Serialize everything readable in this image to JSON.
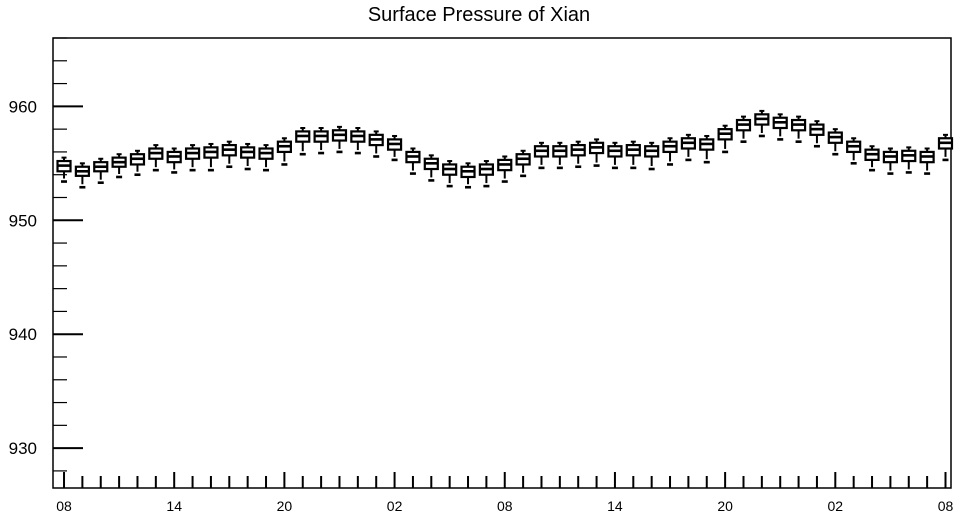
{
  "chart_data": {
    "type": "boxplot",
    "title": "Surface Pressure of Xian",
    "xlabel": "",
    "ylabel": "",
    "ylim": [
      926.5,
      966
    ],
    "y_ticks": [
      930,
      940,
      950,
      960
    ],
    "x_range": [
      -0.6,
      48.3
    ],
    "x_ticks": [
      {
        "pos": 0,
        "label": "08"
      },
      {
        "pos": 6,
        "label": "14"
      },
      {
        "pos": 12,
        "label": "20"
      },
      {
        "pos": 18,
        "label": "02"
      },
      {
        "pos": 24,
        "label": "08"
      },
      {
        "pos": 30,
        "label": "14"
      },
      {
        "pos": 36,
        "label": "20"
      },
      {
        "pos": 42,
        "label": "02"
      },
      {
        "pos": 48,
        "label": "08"
      }
    ],
    "minor_x_step": 1,
    "grid": false,
    "series": [
      {
        "x": [
          0,
          1,
          2,
          3,
          4,
          5,
          6,
          7,
          8,
          9,
          10,
          11,
          12,
          13,
          14,
          15,
          16,
          17,
          18,
          19,
          20,
          21,
          22,
          23,
          24,
          25,
          26,
          27,
          28,
          29,
          30,
          31,
          32,
          33,
          34,
          35,
          36,
          37,
          38,
          39,
          40,
          41,
          42,
          43,
          44,
          45,
          46,
          47,
          48
        ],
        "median": [
          954.8,
          954.3,
          954.7,
          955.1,
          955.4,
          955.9,
          955.6,
          955.9,
          956.0,
          956.2,
          956.0,
          955.9,
          956.5,
          957.4,
          957.4,
          957.5,
          957.4,
          957.1,
          956.7,
          955.6,
          955.0,
          954.5,
          954.3,
          954.5,
          954.9,
          955.4,
          956.1,
          956.1,
          956.2,
          956.4,
          956.1,
          956.2,
          956.1,
          956.5,
          956.8,
          956.7,
          957.6,
          958.4,
          958.9,
          958.6,
          958.4,
          958.0,
          957.3,
          956.5,
          955.8,
          955.6,
          955.7,
          955.6,
          956.8
        ],
        "q1": [
          954.3,
          953.9,
          954.3,
          954.7,
          954.9,
          955.4,
          955.1,
          955.4,
          955.5,
          955.7,
          955.5,
          955.4,
          956.0,
          956.9,
          956.9,
          957.0,
          956.9,
          956.6,
          956.2,
          955.1,
          954.5,
          954.0,
          953.8,
          954.0,
          954.4,
          954.9,
          955.6,
          955.6,
          955.7,
          955.9,
          955.6,
          955.7,
          955.6,
          956.0,
          956.3,
          956.2,
          957.1,
          957.9,
          958.4,
          958.1,
          957.9,
          957.5,
          956.8,
          956.0,
          955.3,
          955.1,
          955.2,
          955.1,
          956.3
        ],
        "q3": [
          955.2,
          954.7,
          955.1,
          955.5,
          955.8,
          956.3,
          956.0,
          956.3,
          956.4,
          956.6,
          956.4,
          956.3,
          956.9,
          957.8,
          957.8,
          957.9,
          957.8,
          957.5,
          957.1,
          956.0,
          955.4,
          954.9,
          954.7,
          954.9,
          955.3,
          955.8,
          956.5,
          956.5,
          956.6,
          956.8,
          956.5,
          956.6,
          956.5,
          956.9,
          957.2,
          957.1,
          958.0,
          958.8,
          959.3,
          959.0,
          958.8,
          958.4,
          957.7,
          956.9,
          956.2,
          956.0,
          956.1,
          956.0,
          957.2
        ],
        "min": [
          953.4,
          952.9,
          953.3,
          953.8,
          954.0,
          954.4,
          954.2,
          954.4,
          954.4,
          954.7,
          954.5,
          954.4,
          954.9,
          955.8,
          955.9,
          956.0,
          955.9,
          955.6,
          955.3,
          954.1,
          953.5,
          953.0,
          952.9,
          953.0,
          953.4,
          953.9,
          954.6,
          954.6,
          954.7,
          954.8,
          954.6,
          954.6,
          954.5,
          954.9,
          955.3,
          955.1,
          956.0,
          956.9,
          957.4,
          957.1,
          956.9,
          956.5,
          955.8,
          955.0,
          954.4,
          954.1,
          954.2,
          954.1,
          955.3
        ],
        "max": [
          955.5,
          955.0,
          955.4,
          955.8,
          956.1,
          956.6,
          956.3,
          956.6,
          956.7,
          956.9,
          956.7,
          956.6,
          957.2,
          958.1,
          958.1,
          958.2,
          958.1,
          957.8,
          957.4,
          956.3,
          955.7,
          955.2,
          955.0,
          955.2,
          955.6,
          956.1,
          956.8,
          956.8,
          956.9,
          957.1,
          956.8,
          956.9,
          956.8,
          957.2,
          957.5,
          957.4,
          958.3,
          959.1,
          959.6,
          959.3,
          959.1,
          958.7,
          958.0,
          957.2,
          956.5,
          956.3,
          956.4,
          956.3,
          957.5
        ]
      }
    ]
  }
}
